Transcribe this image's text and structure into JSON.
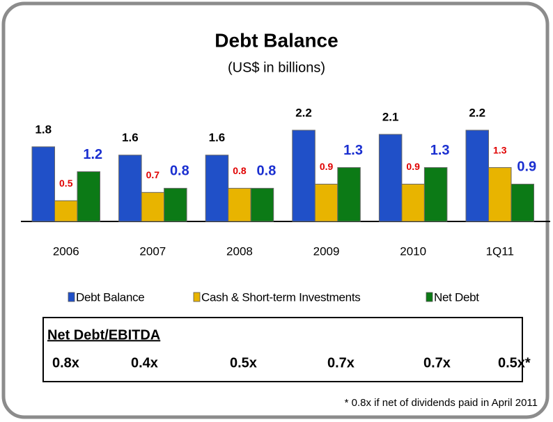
{
  "chart_data": {
    "type": "bar",
    "title": "Debt Balance",
    "subtitle": "(US$ in billions)",
    "categories": [
      "2006",
      "2007",
      "2008",
      "2009",
      "2010",
      "1Q11"
    ],
    "series": [
      {
        "name": "Debt Balance",
        "color": "#2050c8",
        "label_color": "#000000",
        "values": [
          1.8,
          1.6,
          1.6,
          2.2,
          2.1,
          2.2
        ]
      },
      {
        "name": "Cash & Short-term Investments",
        "color": "#e8b400",
        "label_color": "#e00000",
        "values": [
          0.5,
          0.7,
          0.8,
          0.9,
          0.9,
          1.3
        ]
      },
      {
        "name": "Net Debt",
        "color": "#0c7a16",
        "label_color": "#1a2fd0",
        "values": [
          1.2,
          0.8,
          0.8,
          1.3,
          1.3,
          0.9
        ]
      }
    ],
    "legend": "bottom"
  },
  "ratio_table": {
    "title": "Net Debt/EBITDA",
    "values": [
      "0.8x",
      "0.4x",
      "0.5x",
      "0.7x",
      "0.7x",
      "0.5x*"
    ]
  },
  "footnote": "* 0.8x if net of dividends paid in April 2011"
}
